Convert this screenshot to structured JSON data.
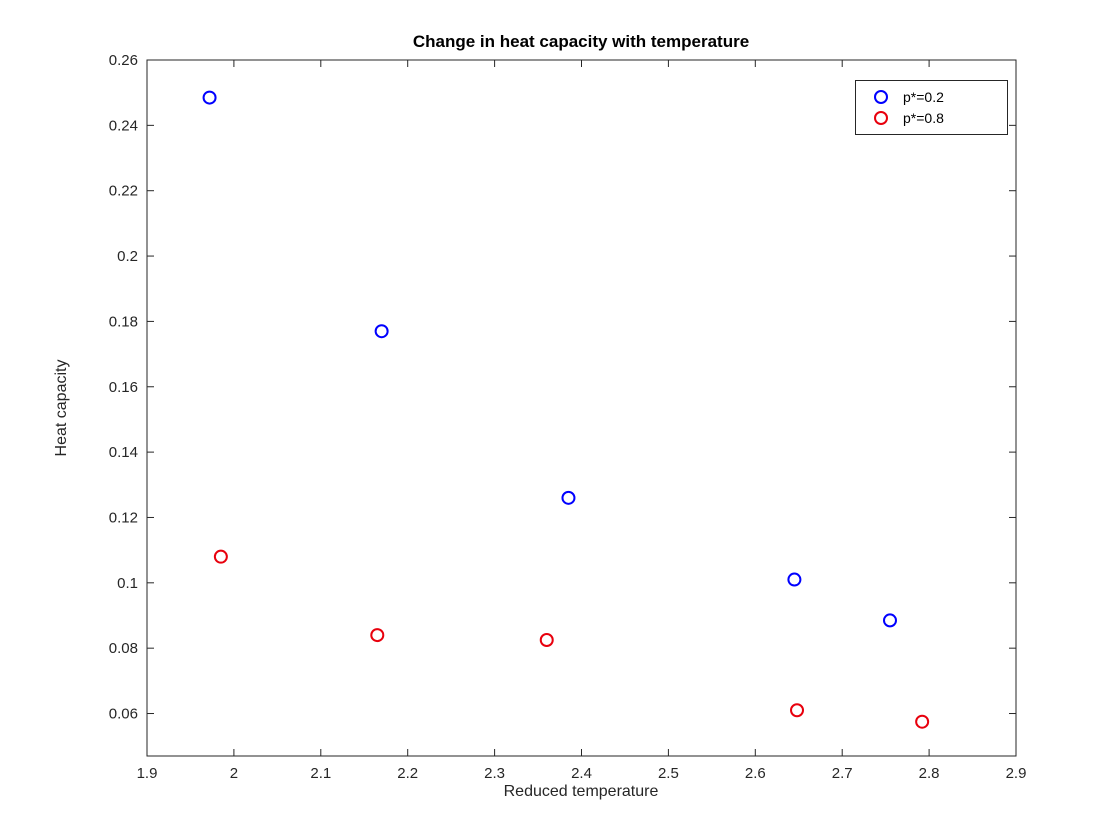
{
  "figure": {
    "background": "#ffffff",
    "axis_color": "#262626"
  },
  "chart_data": {
    "type": "scatter",
    "title": "Change in heat capacity with temperature",
    "xlabel": "Reduced temperature",
    "ylabel": "Heat capacity",
    "xlim": [
      1.9,
      2.9
    ],
    "ylim": [
      0.047,
      0.26
    ],
    "xtick_values": [
      1.9,
      2.0,
      2.1,
      2.2,
      2.3,
      2.4,
      2.5,
      2.6,
      2.7,
      2.8,
      2.9
    ],
    "xtick_labels": [
      "1.9",
      "2",
      "2.1",
      "2.2",
      "2.3",
      "2.4",
      "2.5",
      "2.6",
      "2.7",
      "2.8",
      "2.9"
    ],
    "ytick_values": [
      0.06,
      0.08,
      0.1,
      0.12,
      0.14,
      0.16,
      0.18,
      0.2,
      0.22,
      0.24,
      0.26
    ],
    "ytick_labels": [
      "0.06",
      "0.08",
      "0.1",
      "0.12",
      "0.14",
      "0.16",
      "0.18",
      "0.2",
      "0.22",
      "0.24",
      "0.26"
    ],
    "grid": false,
    "legend_position": "top-right",
    "series": [
      {
        "name": "p*=0.2",
        "color": "#0000ff",
        "marker": "circle",
        "points": [
          [
            1.972,
            0.2485
          ],
          [
            2.17,
            0.177
          ],
          [
            2.385,
            0.126
          ],
          [
            2.645,
            0.101
          ],
          [
            2.755,
            0.0885
          ]
        ]
      },
      {
        "name": "p*=0.8",
        "color": "#e8000d",
        "marker": "circle",
        "points": [
          [
            1.985,
            0.108
          ],
          [
            2.165,
            0.084
          ],
          [
            2.36,
            0.0825
          ],
          [
            2.648,
            0.061
          ],
          [
            2.792,
            0.0575
          ]
        ]
      }
    ]
  }
}
